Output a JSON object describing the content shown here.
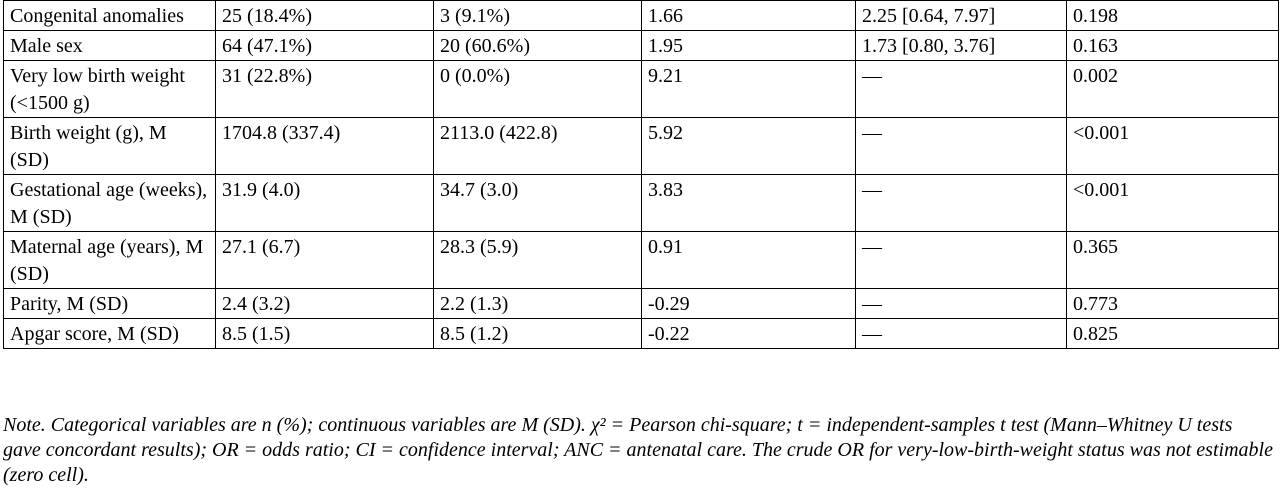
{
  "table": {
    "rows": [
      [
        "Congenital anomalies",
        "25 (18.4%)",
        "3 (9.1%)",
        "1.66",
        "2.25 [0.64, 7.97]",
        "0.198"
      ],
      [
        "Male sex",
        "64 (47.1%)",
        "20 (60.6%)",
        "1.95",
        "1.73 [0.80, 3.76]",
        "0.163"
      ],
      [
        "Very low birth weight (<1500 g)",
        "31 (22.8%)",
        "0 (0.0%)",
        "9.21",
        "—",
        "0.002"
      ],
      [
        "Birth weight (g), M (SD)",
        "1704.8 (337.4)",
        "2113.0 (422.8)",
        "5.92",
        "—",
        "<0.001"
      ],
      [
        "Gestational age (weeks), M (SD)",
        "31.9 (4.0)",
        "34.7 (3.0)",
        "3.83",
        "—",
        "<0.001"
      ],
      [
        "Maternal age (years), M (SD)",
        "27.1 (6.7)",
        "28.3 (5.9)",
        "0.91",
        "—",
        "0.365"
      ],
      [
        "Parity, M (SD)",
        "2.4 (3.2)",
        "2.2 (1.3)",
        "-0.29",
        "—",
        "0.773"
      ],
      [
        "Apgar score, M (SD)",
        "8.5 (1.5)",
        "8.5 (1.2)",
        "-0.22",
        "—",
        "0.825"
      ]
    ]
  },
  "note": "Note. Categorical variables are n (%); continuous variables are M (SD). χ² = Pearson chi-square; t = independent-samples t test (Mann–Whitney U tests gave concordant results); OR = odds ratio; CI = confidence interval; ANC = antenatal care. The crude OR for very-low-birth-weight status was not estimable (zero cell)."
}
